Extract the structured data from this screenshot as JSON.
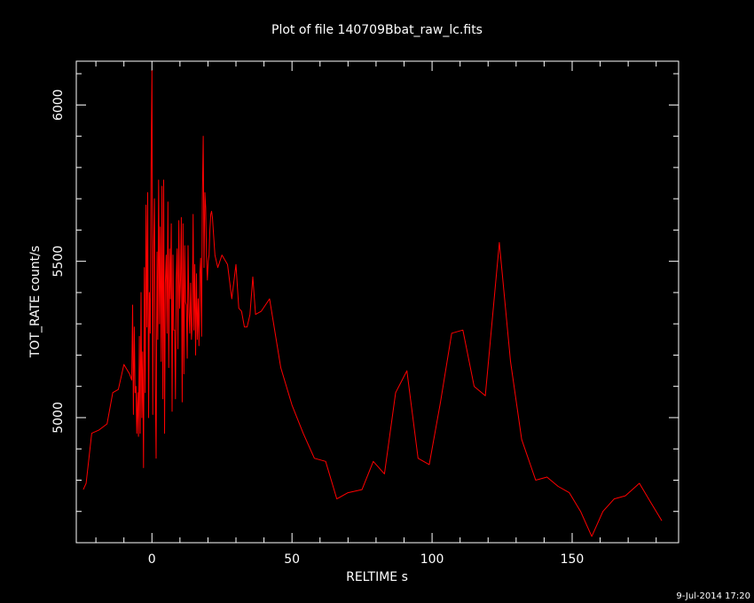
{
  "chart_data": {
    "type": "line",
    "title": "Plot of file 140709Bbat_raw_lc.fits",
    "xlabel": "RELTIME  s",
    "ylabel": "TOT_RATE  count/s",
    "xlim": [
      -27,
      188
    ],
    "ylim": [
      4600,
      6140
    ],
    "x_ticks": [
      0,
      50,
      100,
      150
    ],
    "y_ticks": [
      5000,
      5500,
      6000
    ],
    "line_color": "#ff0000",
    "background": "#000000",
    "series": [
      {
        "x": [
          -24.5,
          -23.5,
          -21.5,
          -19,
          -16,
          -14,
          -12,
          -10,
          -8,
          -7.2,
          -6.9,
          -6.6,
          -6.3,
          -6.0,
          -5.7,
          -5.4,
          -5.1,
          -4.8,
          -4.5,
          -4.2,
          -3.9,
          -3.6,
          -3.3,
          -3.0,
          -2.7,
          -2.4,
          -2.1,
          -1.8,
          -1.5,
          -1.2,
          -0.9,
          -0.6,
          -0.3,
          0.0,
          0.3,
          0.6,
          0.9,
          1.2,
          1.5,
          1.8,
          2.1,
          2.4,
          2.7,
          3.0,
          3.3,
          3.6,
          3.9,
          4.2,
          4.5,
          4.8,
          5.1,
          5.4,
          5.7,
          6.0,
          6.3,
          6.6,
          6.9,
          7.2,
          7.5,
          7.8,
          8.1,
          8.4,
          8.7,
          9.0,
          9.3,
          9.6,
          9.9,
          10.2,
          10.5,
          10.8,
          11.1,
          11.4,
          11.7,
          12.0,
          12.3,
          12.6,
          12.9,
          13.2,
          13.5,
          13.8,
          14.1,
          14.4,
          14.7,
          15.0,
          15.3,
          15.6,
          15.9,
          16.2,
          16.5,
          16.8,
          17.1,
          17.4,
          17.7,
          18.0,
          18.3,
          18.6,
          18.9,
          19.2,
          19.5,
          19.8,
          20.1,
          20.4,
          20.7,
          21.0,
          21.3,
          21.6,
          21.9,
          22.5,
          23.5,
          25,
          27,
          28.5,
          30,
          31,
          32,
          33,
          34,
          35,
          36,
          37,
          39,
          42,
          46,
          50,
          54,
          58,
          62,
          66,
          70,
          75,
          79,
          83,
          87,
          91,
          95,
          99,
          103,
          107,
          111,
          115,
          119,
          124,
          128,
          132,
          137,
          141,
          145,
          149,
          153,
          157,
          161,
          165,
          169,
          174,
          178,
          182
        ],
        "y": [
          4770,
          4790,
          4950,
          4960,
          4980,
          5080,
          5090,
          5170,
          5140,
          5120,
          5360,
          5010,
          5290,
          5080,
          5100,
          4950,
          5080,
          4940,
          5260,
          4950,
          5400,
          5000,
          5210,
          4840,
          5480,
          5080,
          5680,
          5290,
          5720,
          5000,
          5400,
          5270,
          5800,
          6110,
          5010,
          5540,
          5700,
          5100,
          4870,
          5530,
          5250,
          5760,
          5300,
          5610,
          5180,
          5740,
          5060,
          5760,
          4950,
          5430,
          5520,
          5270,
          5690,
          5160,
          5540,
          5380,
          5620,
          5020,
          5520,
          5280,
          5280,
          5060,
          5440,
          5540,
          5220,
          5630,
          5350,
          5440,
          5640,
          5050,
          5620,
          5140,
          5550,
          5370,
          5360,
          5190,
          5550,
          5340,
          5270,
          5430,
          5250,
          5300,
          5650,
          5280,
          5490,
          5200,
          5460,
          5250,
          5380,
          5230,
          5460,
          5510,
          5260,
          5700,
          5900,
          5480,
          5720,
          5670,
          5500,
          5440,
          5500,
          5520,
          5600,
          5650,
          5660,
          5640,
          5600,
          5520,
          5480,
          5520,
          5490,
          5380,
          5490,
          5350,
          5340,
          5290,
          5290,
          5330,
          5450,
          5330,
          5340,
          5380,
          5160,
          5040,
          4950,
          4870,
          4860,
          4740,
          4760,
          4770,
          4860,
          4820,
          5080,
          5150,
          4870,
          4850,
          5050,
          5270,
          5280,
          5100,
          5070,
          5560,
          5180,
          4930,
          4800,
          4810,
          4780,
          4760,
          4700,
          4620,
          4700,
          4740,
          4750,
          4790,
          4730,
          4670
        ]
      }
    ]
  },
  "footer": {
    "timestamp": "9-Jul-2014 17:20"
  }
}
